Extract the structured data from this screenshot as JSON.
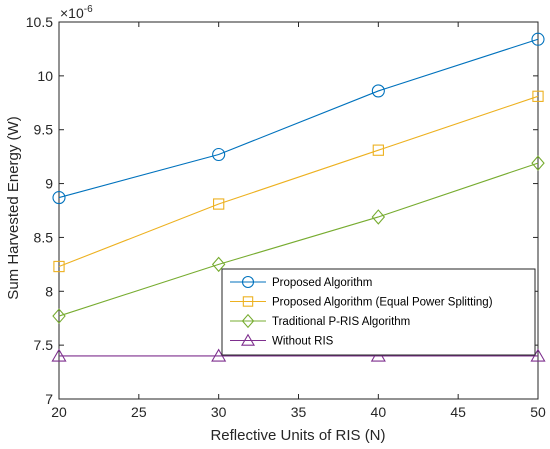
{
  "chart_data": {
    "type": "line",
    "xlabel": "Reflective Units of RIS (N)",
    "ylabel": "Sum Harvested Energy (W)",
    "y_exponent_label": "×10",
    "y_exponent_power": "-6",
    "xlim": [
      20,
      50
    ],
    "ylim": [
      7,
      10.5
    ],
    "x_ticks": [
      20,
      25,
      30,
      35,
      40,
      45,
      50
    ],
    "y_ticks": [
      7,
      7.5,
      8,
      8.5,
      9,
      9.5,
      10,
      10.5
    ],
    "x_tick_labels": [
      "20",
      "25",
      "30",
      "35",
      "40",
      "45",
      "50"
    ],
    "y_tick_labels": [
      "7",
      "7.5",
      "8",
      "8.5",
      "9",
      "9.5",
      "10",
      "10.5"
    ],
    "grid": false,
    "legend_position": "bottom-right",
    "x": [
      20,
      30,
      40,
      50
    ],
    "series": [
      {
        "name": "Proposed Algorithm",
        "values": [
          8.87,
          9.27,
          9.86,
          10.34
        ],
        "color": "#0072BD",
        "marker": "circle"
      },
      {
        "name": "Proposed Algorithm (Equal Power Splitting)",
        "values": [
          8.23,
          8.81,
          9.31,
          9.81
        ],
        "color": "#EDB120",
        "marker": "square"
      },
      {
        "name": "Traditional P-RIS Algorithm",
        "values": [
          7.77,
          8.25,
          8.69,
          9.19
        ],
        "color": "#77AC30",
        "marker": "diamond"
      },
      {
        "name": "Without RIS",
        "values": [
          7.4,
          7.4,
          7.4,
          7.4
        ],
        "color": "#7E2F8E",
        "marker": "triangle"
      }
    ]
  }
}
